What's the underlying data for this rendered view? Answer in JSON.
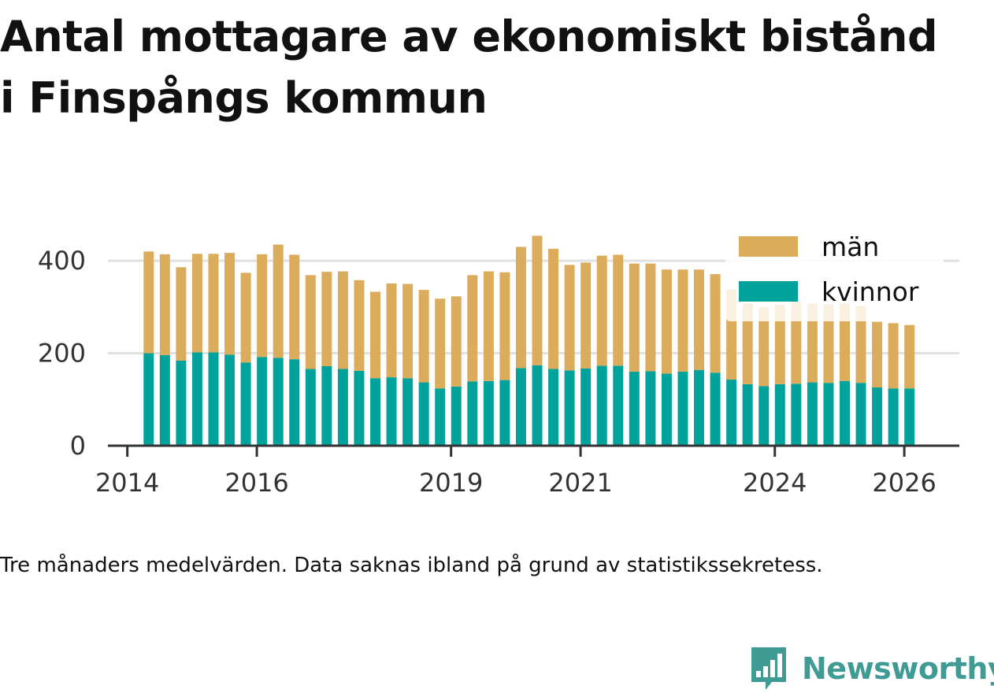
{
  "title_lines": [
    "Antal mottagare av ekonomiskt bistånd",
    "i Finspångs kommun"
  ],
  "note": "Tre månaders medelvärden. Data saknas ibland på grund av statistikssekretess.",
  "brand": "Newsworthy",
  "colors": {
    "man": "#dbac5c",
    "kvinnor": "#00a39b",
    "grid": "#e1e1e1",
    "axis": "#333333",
    "brand": "#3f9b94"
  },
  "chart_data": {
    "type": "bar",
    "stacked": true,
    "title": "Antal mottagare av ekonomiskt bistånd i Finspångs kommun",
    "xlabel": "",
    "ylabel": "",
    "ylim": [
      0,
      470
    ],
    "xlim": [
      2013.7,
      2026.85
    ],
    "yticks": [
      0,
      200,
      400
    ],
    "xticks": [
      "2014",
      "2016",
      "2019",
      "2021",
      "2024",
      "2026"
    ],
    "grid": true,
    "legend_position": "top-right",
    "x": [
      2014.33,
      2014.58,
      2014.83,
      2015.08,
      2015.33,
      2015.58,
      2015.83,
      2016.08,
      2016.33,
      2016.58,
      2016.83,
      2017.08,
      2017.33,
      2017.58,
      2017.83,
      2018.08,
      2018.33,
      2018.58,
      2018.83,
      2019.08,
      2019.33,
      2019.58,
      2019.83,
      2020.08,
      2020.33,
      2020.58,
      2020.83,
      2021.08,
      2021.33,
      2021.58,
      2021.83,
      2022.08,
      2022.33,
      2022.58,
      2022.83,
      2023.08,
      2023.33,
      2023.58,
      2023.83,
      2024.08,
      2024.33,
      2024.58,
      2024.83,
      2025.08,
      2025.33,
      2025.58,
      2025.83,
      2026.08
    ],
    "series": [
      {
        "name": "kvinnor",
        "values": [
          200,
          196,
          184,
          202,
          202,
          197,
          180,
          192,
          190,
          187,
          166,
          172,
          166,
          162,
          146,
          148,
          146,
          137,
          124,
          128,
          139,
          140,
          142,
          168,
          174,
          166,
          163,
          167,
          173,
          173,
          160,
          161,
          156,
          160,
          164,
          158,
          143,
          133,
          129,
          133,
          134,
          137,
          136,
          140,
          136,
          126,
          124,
          124
        ]
      },
      {
        "name": "män",
        "values": [
          220,
          218,
          202,
          213,
          213,
          220,
          194,
          222,
          245,
          226,
          203,
          204,
          211,
          196,
          187,
          203,
          204,
          200,
          194,
          195,
          230,
          237,
          233,
          262,
          280,
          260,
          228,
          229,
          238,
          240,
          234,
          233,
          225,
          221,
          217,
          213,
          195,
          175,
          170,
          172,
          178,
          170,
          170,
          168,
          166,
          142,
          141,
          137
        ]
      }
    ]
  }
}
